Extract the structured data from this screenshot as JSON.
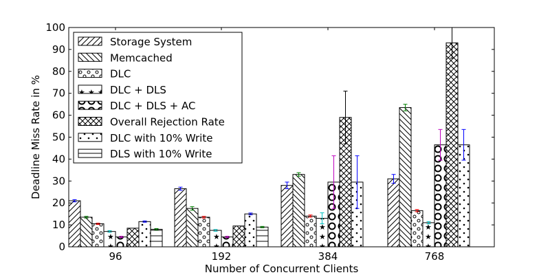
{
  "chart_data": {
    "type": "bar",
    "title": "",
    "xlabel": "Number of Concurrent Clients",
    "ylabel": "Deadline Miss Rate in %",
    "ylim": [
      0,
      100
    ],
    "yticks": [
      0,
      10,
      20,
      30,
      40,
      50,
      60,
      70,
      80,
      90,
      100
    ],
    "categories": [
      "96",
      "192",
      "384",
      "768"
    ],
    "grid": false,
    "legend_position": "top-left",
    "series": [
      {
        "name": "Storage System",
        "pattern": "diag-right",
        "values": [
          21,
          26.5,
          28,
          31
        ],
        "errors": [
          0.5,
          0.7,
          1.5,
          2.0
        ],
        "error_color": "#0000ff"
      },
      {
        "name": "Memcached",
        "pattern": "diag-left",
        "values": [
          13.5,
          17.5,
          33,
          63.5
        ],
        "errors": [
          0.4,
          0.8,
          0.8,
          1.5
        ],
        "error_color": "#008000"
      },
      {
        "name": "DLC",
        "pattern": "small-circles",
        "values": [
          10.5,
          13.5,
          14,
          16.5
        ],
        "errors": [
          0.3,
          0.4,
          0.5,
          0.5
        ],
        "error_color": "#ff0000"
      },
      {
        "name": "DLC + DLS",
        "pattern": "stars",
        "values": [
          7,
          7.5,
          13,
          11
        ],
        "errors": [
          0.4,
          0.4,
          2.5,
          0.5
        ],
        "error_color": "#00bfbf"
      },
      {
        "name": "DLC + DLS + AC",
        "pattern": "big-circles",
        "values": [
          4.5,
          4.5,
          29.5,
          46.5
        ],
        "errors": [
          0.3,
          0.3,
          12,
          7
        ],
        "error_color": "#bf00bf"
      },
      {
        "name": "Overall Rejection Rate",
        "pattern": "crosshatch",
        "values": [
          8.5,
          9.5,
          59,
          93
        ],
        "errors": [
          0,
          0,
          12,
          7
        ],
        "error_color": "#000000"
      },
      {
        "name": "DLC with 10% Write",
        "pattern": "dots",
        "values": [
          11.5,
          15,
          29.5,
          46.5
        ],
        "errors": [
          0.3,
          0.4,
          12,
          7
        ],
        "error_color": "#0000ff"
      },
      {
        "name": "DLS with 10% Write",
        "pattern": "hlines",
        "values": [
          8,
          9,
          null,
          null
        ],
        "errors": [
          0.3,
          0.3,
          0,
          0
        ],
        "error_color": "#008000"
      }
    ]
  }
}
